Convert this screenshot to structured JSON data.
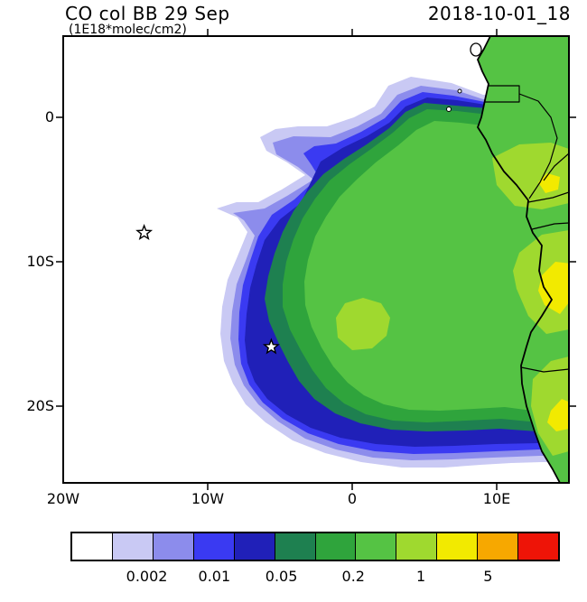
{
  "header": {
    "title": "CO col BB 29 Sep",
    "units": "(1E18*molec/cm2)",
    "timestamp": "2018-10-01_18"
  },
  "axes": {
    "y_labels": [
      "0",
      "10S",
      "20S"
    ],
    "x_labels": [
      "20W",
      "10W",
      "0",
      "10E"
    ]
  },
  "chart_data": {
    "type": "heatmap",
    "title": "CO col BB 29 Sep",
    "variable": "CO column from biomass burning",
    "units": "1E18*molec/cm2",
    "valid_time": "2018-10-01_18",
    "map_extent": {
      "lon": [
        -20,
        15
      ],
      "lat": [
        -25.3,
        5.6
      ]
    },
    "x_ticks": [
      "20W",
      "10W",
      "0",
      "10E"
    ],
    "y_ticks": [
      "0",
      "10S",
      "20S"
    ],
    "colorbar": {
      "labels": [
        "0.002",
        "0.01",
        "0.05",
        "0.2",
        "1",
        "5"
      ],
      "colors": [
        "#FFFFFF",
        "#C9C9F4",
        "#8C8CEC",
        "#3A3AF2",
        "#2020B8",
        "#1E8050",
        "#2FA43C",
        "#55C344",
        "#9FD92F",
        "#F2EA00",
        "#F7A800",
        "#EE1407"
      ],
      "implied_levels": [
        "0.002",
        "0.005",
        "0.01",
        "0.02",
        "0.05",
        "0.1",
        "0.2",
        "0.5",
        "1",
        "2",
        "5"
      ]
    },
    "markers": [
      {
        "symbol": "star",
        "lon": -14.4,
        "lat": -8.0
      },
      {
        "symbol": "star",
        "lon": -5.6,
        "lat": -15.9
      }
    ],
    "field_description": "Biomass-burning CO plume over the SE Atlantic off the Congo/Angola coast: concentric shells increase from <0.002 (white ocean background in the west) through lavender/blue/navy fringes to a broad green core >0.05-0.2 reaching the African coast; lighter green and yellow maxima (~0.5-2) over inland Congo and Angola near 5S-13S; a thin plume arm extends northwest near 2-4S and the shaded plume reaches west to about 14W and south to about 24S."
  }
}
